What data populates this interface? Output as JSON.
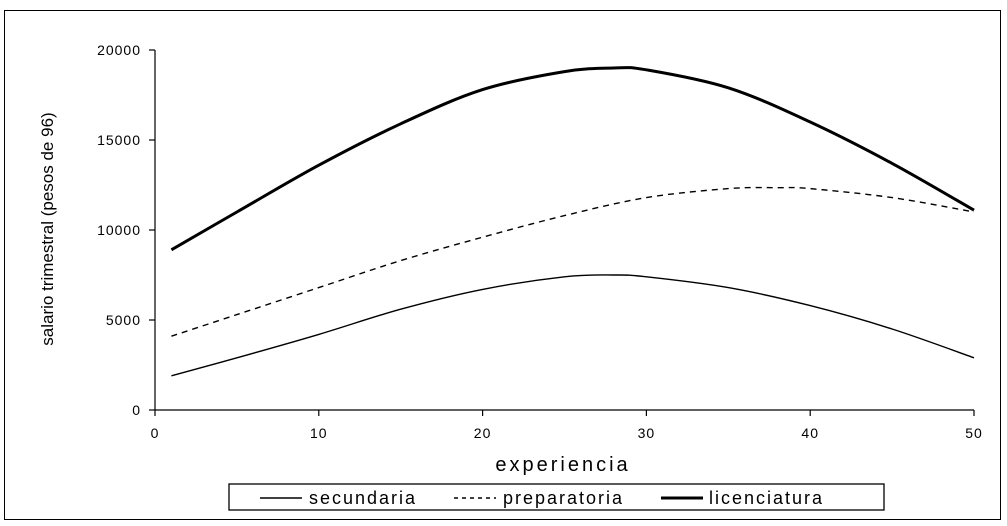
{
  "chart_data": {
    "type": "line",
    "xlabel": "experiencia",
    "ylabel": "salario trimestral (pesos de 96)",
    "xlim": [
      0,
      50
    ],
    "ylim": [
      0,
      20000
    ],
    "x_ticks": [
      0,
      10,
      20,
      30,
      40,
      50
    ],
    "y_ticks": [
      0,
      5000,
      10000,
      15000,
      20000
    ],
    "x_tick_labels": [
      "0",
      "10",
      "20",
      "30",
      "40",
      "50"
    ],
    "y_tick_labels": [
      "0",
      "5000",
      "10000",
      "15000",
      "20000"
    ],
    "grid": false,
    "legend_position": "bottom",
    "series": [
      {
        "name": "secundaria",
        "style": "thin-solid",
        "color": "#000000",
        "x": [
          1,
          5,
          10,
          15,
          20,
          25,
          28,
          30,
          35,
          40,
          45,
          50
        ],
        "y": [
          1900,
          2900,
          4200,
          5600,
          6700,
          7400,
          7500,
          7400,
          6800,
          5800,
          4500,
          2900
        ]
      },
      {
        "name": "preparatoria",
        "style": "dashed",
        "color": "#000000",
        "x": [
          1,
          5,
          10,
          15,
          20,
          25,
          30,
          35,
          38,
          40,
          45,
          50
        ],
        "y": [
          4100,
          5300,
          6800,
          8300,
          9600,
          10800,
          11800,
          12300,
          12350,
          12300,
          11800,
          11000
        ]
      },
      {
        "name": "licenciatura",
        "style": "thick-solid",
        "color": "#000000",
        "x": [
          1,
          5,
          10,
          15,
          20,
          25,
          28,
          30,
          35,
          40,
          45,
          50
        ],
        "y": [
          8900,
          11000,
          13600,
          15900,
          17800,
          18800,
          19000,
          18900,
          17900,
          16000,
          13700,
          11100
        ]
      }
    ]
  }
}
